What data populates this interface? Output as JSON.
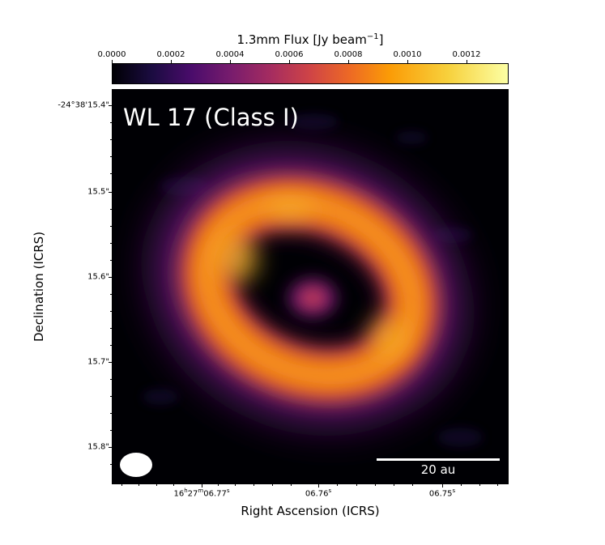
{
  "colorbar": {
    "title_main": "1.3mm Flux [Jy beam",
    "title_sup": "−1",
    "title_close": "]",
    "ticks": [
      "0.0000",
      "0.0002",
      "0.0004",
      "0.0006",
      "0.0008",
      "0.0010",
      "0.0012"
    ]
  },
  "image": {
    "source_label": "WL 17 (Class I)",
    "scalebar_label": "20 au",
    "colormap": "inferno"
  },
  "axes": {
    "xlabel": "Right Ascension (ICRS)",
    "ylabel": "Declination (ICRS)",
    "dec_ticks": [
      "-24°38'15.4\"",
      "15.5\"",
      "15.6\"",
      "15.7\"",
      "15.8\""
    ],
    "ra_ticks": [
      {
        "main": "16",
        "h": "h",
        "m_val": "27",
        "m": "m",
        "s_val": "06.77",
        "s": "s"
      },
      {
        "main": "",
        "h": "",
        "m_val": "",
        "m": "",
        "s_val": "06.76",
        "s": "s"
      },
      {
        "main": "",
        "h": "",
        "m_val": "",
        "m": "",
        "s_val": "06.75",
        "s": "s"
      }
    ]
  }
}
